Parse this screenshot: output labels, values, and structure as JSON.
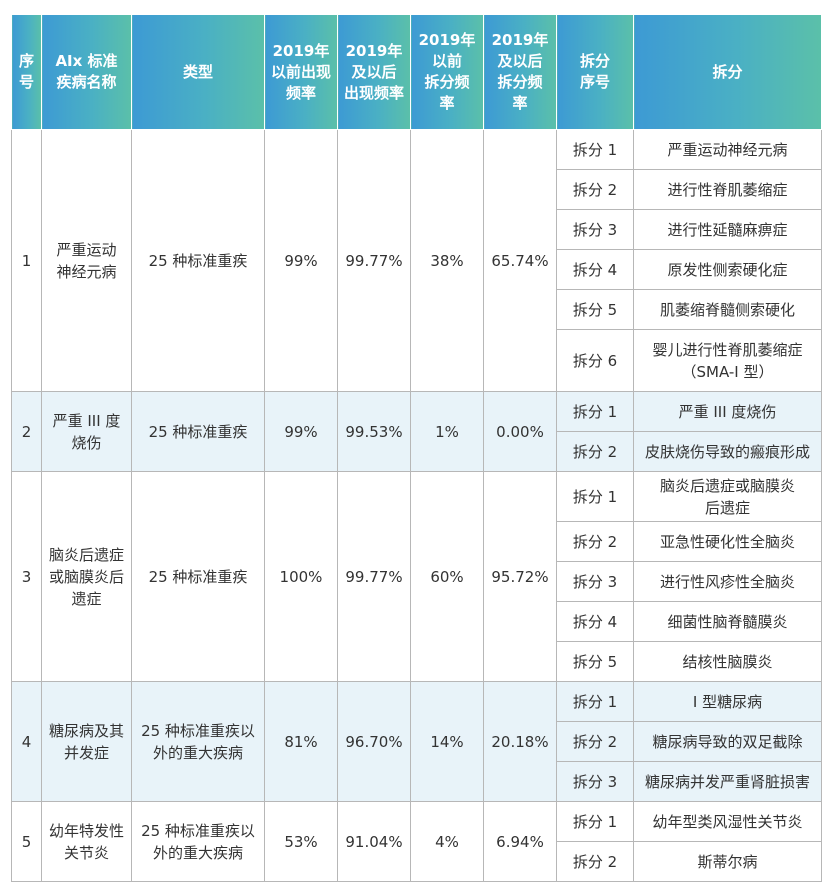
{
  "header": {
    "idx": "序\n号",
    "name": "AIx 标准\n疾病名称",
    "type": "类型",
    "freq_before": "2019年\n以前出现\n频率",
    "freq_after": "2019年\n及以后\n出现频率",
    "split_before": "2019年\n以前\n拆分频\n率",
    "split_after": "2019年\n及以后\n拆分频\n率",
    "split_idx": "拆分\n序号",
    "split": "拆分"
  },
  "groups": [
    {
      "idx": "1",
      "name": "严重运动\n神经元病",
      "type": "25 种标准重疾",
      "freq_before": "99%",
      "freq_after": "99.77%",
      "split_before": "38%",
      "split_after": "65.74%",
      "splits": [
        {
          "no": "拆分 1",
          "name": "严重运动神经元病"
        },
        {
          "no": "拆分 2",
          "name": "进行性脊肌萎缩症"
        },
        {
          "no": "拆分 3",
          "name": "进行性延髓麻痹症"
        },
        {
          "no": "拆分 4",
          "name": "原发性侧索硬化症"
        },
        {
          "no": "拆分 5",
          "name": "肌萎缩脊髓侧索硬化"
        },
        {
          "no": "拆分 6",
          "name": "婴儿进行性脊肌萎缩症\n（SMA-I 型）"
        }
      ]
    },
    {
      "idx": "2",
      "name": "严重 III 度\n烧伤",
      "type": "25 种标准重疾",
      "freq_before": "99%",
      "freq_after": "99.53%",
      "split_before": "1%",
      "split_after": "0.00%",
      "splits": [
        {
          "no": "拆分 1",
          "name": "严重 III 度烧伤"
        },
        {
          "no": "拆分 2",
          "name": "皮肤烧伤导致的瘢痕形成"
        }
      ]
    },
    {
      "idx": "3",
      "name": "脑炎后遗症\n或脑膜炎后\n遗症",
      "type": "25 种标准重疾",
      "freq_before": "100%",
      "freq_after": "99.77%",
      "split_before": "60%",
      "split_after": "95.72%",
      "splits": [
        {
          "no": "拆分 1",
          "name": "脑炎后遗症或脑膜炎\n后遗症"
        },
        {
          "no": "拆分 2",
          "name": "亚急性硬化性全脑炎"
        },
        {
          "no": "拆分 3",
          "name": "进行性风疹性全脑炎"
        },
        {
          "no": "拆分 4",
          "name": "细菌性脑脊髓膜炎"
        },
        {
          "no": "拆分 5",
          "name": "结核性脑膜炎"
        }
      ]
    },
    {
      "idx": "4",
      "name": "糖尿病及其\n并发症",
      "type": "25 种标准重疾以\n外的重大疾病",
      "freq_before": "81%",
      "freq_after": "96.70%",
      "split_before": "14%",
      "split_after": "20.18%",
      "splits": [
        {
          "no": "拆分 1",
          "name": "I 型糖尿病"
        },
        {
          "no": "拆分 2",
          "name": "糖尿病导致的双足截除"
        },
        {
          "no": "拆分 3",
          "name": "糖尿病并发严重肾脏损害"
        }
      ]
    },
    {
      "idx": "5",
      "name": "幼年特发性\n关节炎",
      "type": "25 种标准重疾以\n外的重大疾病",
      "freq_before": "53%",
      "freq_after": "91.04%",
      "split_before": "4%",
      "split_after": "6.94%",
      "splits": [
        {
          "no": "拆分 1",
          "name": "幼年型类风湿性关节炎"
        },
        {
          "no": "拆分 2",
          "name": "斯蒂尔病"
        }
      ]
    }
  ]
}
